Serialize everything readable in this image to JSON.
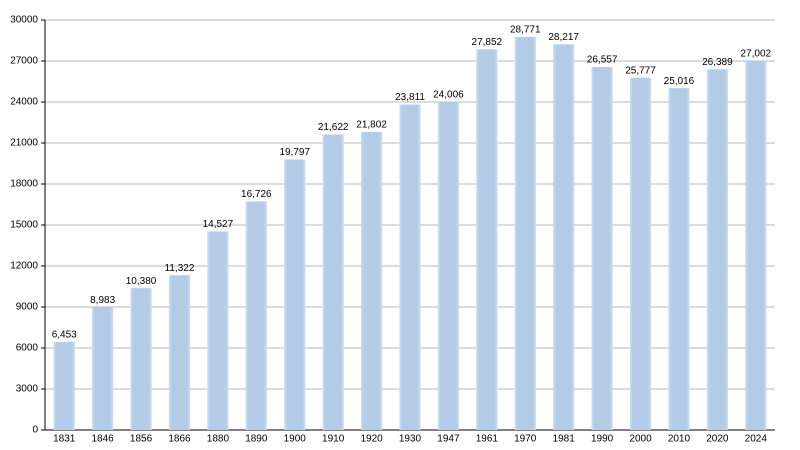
{
  "chart_data": {
    "type": "bar",
    "categories": [
      "1831",
      "1846",
      "1856",
      "1866",
      "1880",
      "1890",
      "1900",
      "1910",
      "1920",
      "1930",
      "1947",
      "1961",
      "1970",
      "1981",
      "1990",
      "2000",
      "2010",
      "2020",
      "2024"
    ],
    "values": [
      6453,
      8983,
      10380,
      11322,
      14527,
      16726,
      19797,
      21622,
      21802,
      23811,
      24006,
      27852,
      28771,
      28217,
      26557,
      25777,
      25016,
      26389,
      27002
    ],
    "value_labels": [
      "6,453",
      "8,983",
      "10,380",
      "11,322",
      "14,527",
      "16,726",
      "19,797",
      "21,622",
      "21,802",
      "23,811",
      "24,006",
      "27,852",
      "28,771",
      "28,217",
      "26,557",
      "25,777",
      "25,016",
      "26,389",
      "27,002"
    ],
    "color": "#b3cbe6",
    "ylim": [
      0,
      30000
    ],
    "yticks": [
      0,
      3000,
      6000,
      9000,
      12000,
      15000,
      18000,
      21000,
      24000,
      27000,
      30000
    ],
    "grid": true
  }
}
